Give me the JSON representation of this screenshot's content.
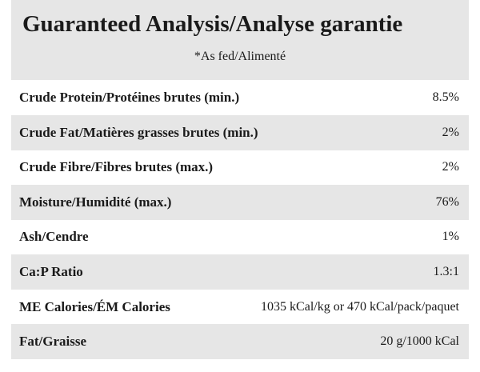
{
  "header": {
    "title": "Guaranteed Analysis/Analyse garantie",
    "subtitle": "*As fed/Alimenté"
  },
  "table": {
    "rows": [
      [
        "Crude Protein/Protéines brutes (min.)",
        "8.5%"
      ],
      [
        "Crude Fat/Matières grasses brutes (min.)",
        "2%"
      ],
      [
        "Crude Fibre/Fibres brutes (max.)",
        "2%"
      ],
      [
        "Moisture/Humidité (max.)",
        "76%"
      ],
      [
        "Ash/Cendre",
        "1%"
      ],
      [
        "Ca:P Ratio",
        "1.3:1"
      ],
      [
        "ME Calories/ÉM Calories",
        "1035 kCal/kg or 470 kCal/pack/paquet"
      ],
      [
        "Fat/Graisse",
        "20 g/1000 kCal"
      ]
    ]
  }
}
